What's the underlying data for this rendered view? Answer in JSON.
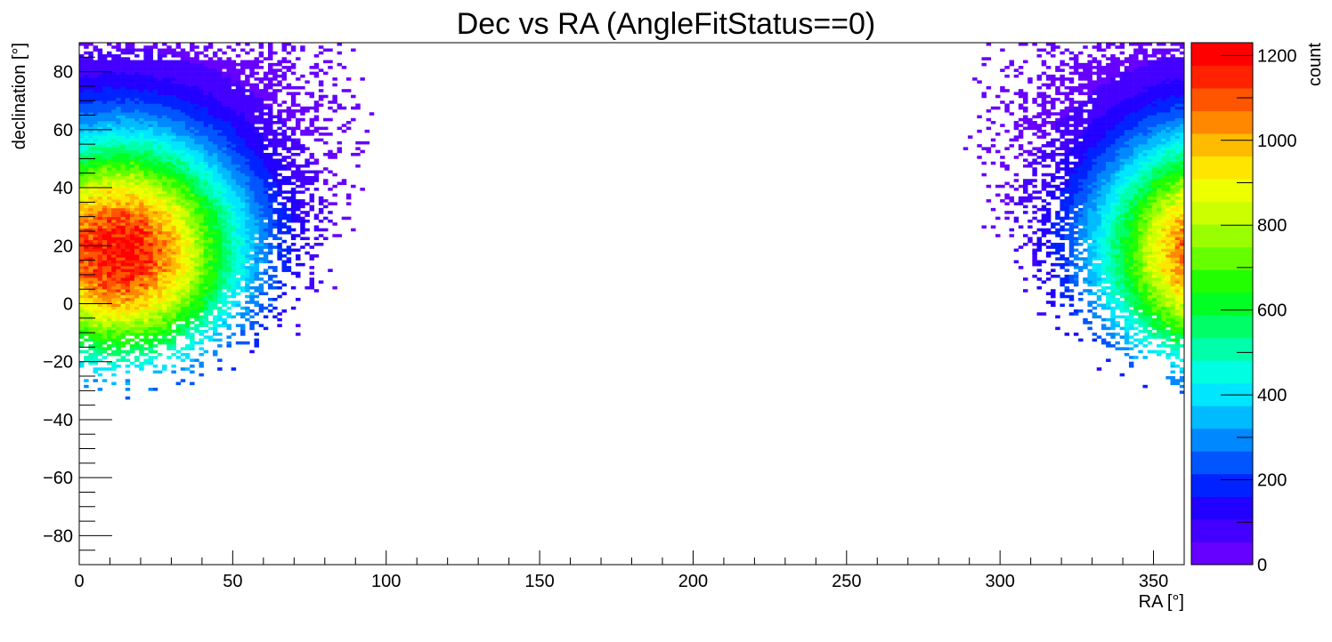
{
  "chart_data": {
    "type": "heatmap",
    "title": "Dec vs RA (AngleFitStatus==0)",
    "xlabel": "RA [°]",
    "ylabel": "declination [°]",
    "zlabel": "count",
    "xlim": [
      0,
      360
    ],
    "ylim": [
      -90,
      90
    ],
    "zlim": [
      0,
      1230
    ],
    "x_ticks": [
      0,
      50,
      100,
      150,
      200,
      250,
      300,
      350
    ],
    "y_ticks": [
      -80,
      -60,
      -40,
      -20,
      0,
      20,
      40,
      60,
      80
    ],
    "z_ticks": [
      0,
      200,
      400,
      600,
      800,
      1000,
      1200
    ],
    "x_tick_labels": [
      "0",
      "50",
      "100",
      "150",
      "200",
      "250",
      "300",
      "350"
    ],
    "y_tick_labels": [
      "−80",
      "−60",
      "−40",
      "−20",
      "0",
      "20",
      "40",
      "60",
      "80"
    ],
    "z_tick_labels": [
      "0",
      "200",
      "400",
      "600",
      "800",
      "1000",
      "1200"
    ],
    "palette": [
      "#6600ff",
      "#4400ff",
      "#2200ff",
      "#0022ff",
      "#0055ff",
      "#0088ff",
      "#00bbff",
      "#00e6ff",
      "#00ffe0",
      "#00ffaa",
      "#00ff66",
      "#00ff22",
      "#22ff00",
      "#66ff00",
      "#99ff00",
      "#ccff00",
      "#eeff00",
      "#ffe600",
      "#ffbb00",
      "#ff8800",
      "#ff5500",
      "#ff2200",
      "#ff0000"
    ],
    "peak": {
      "ra": 13,
      "dec": 18,
      "count": 1200
    },
    "grid": false,
    "legend": "right colorbar"
  }
}
